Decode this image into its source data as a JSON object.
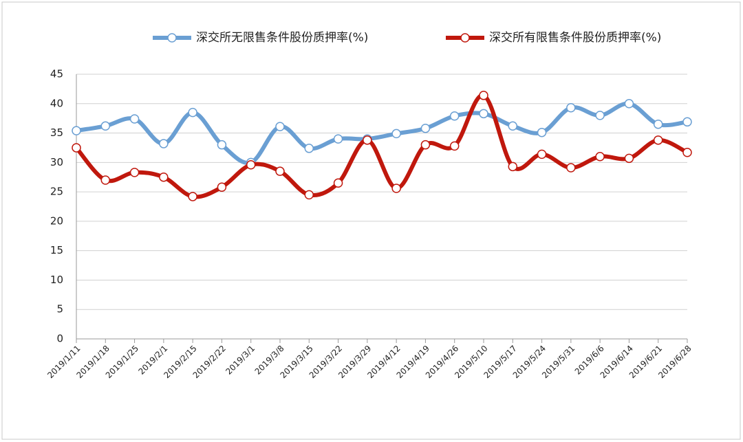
{
  "chart_data": {
    "type": "line",
    "x": [
      "2019/1/11",
      "2019/1/18",
      "2019/1/25",
      "2019/2/1",
      "2019/2/15",
      "2019/2/22",
      "2019/3/1",
      "2019/3/8",
      "2019/3/15",
      "2019/3/22",
      "2019/3/29",
      "2019/4/12",
      "2019/4/19",
      "2019/4/26",
      "2019/5/10",
      "2019/5/17",
      "2019/5/24",
      "2019/5/31",
      "2019/6/6",
      "2019/6/14",
      "2019/6/21",
      "2019/6/28"
    ],
    "series": [
      {
        "name": "深交所无限售条件股份质押率(%)",
        "color": "#6a9fd3",
        "values": [
          35.4,
          36.2,
          37.4,
          33.2,
          38.5,
          33.0,
          30.0,
          36.1,
          32.4,
          34.0,
          34.0,
          34.9,
          35.8,
          37.9,
          38.3,
          36.2,
          35.1,
          39.3,
          38.0,
          40.0,
          36.5,
          36.9
        ]
      },
      {
        "name": "深交所有限售条件股份质押率(%)",
        "color": "#c0180d",
        "values": [
          32.5,
          27.0,
          28.3,
          27.5,
          24.2,
          25.8,
          29.6,
          28.5,
          24.5,
          26.5,
          33.8,
          25.6,
          33.0,
          32.8,
          41.4,
          29.3,
          31.4,
          29.1,
          31.0,
          30.7,
          33.8,
          31.7
        ]
      }
    ],
    "ylim": [
      0,
      45
    ],
    "yticks": [
      0,
      5,
      10,
      15,
      20,
      25,
      30,
      35,
      40,
      45
    ],
    "grid": true,
    "smooth": true,
    "legend": "top"
  }
}
